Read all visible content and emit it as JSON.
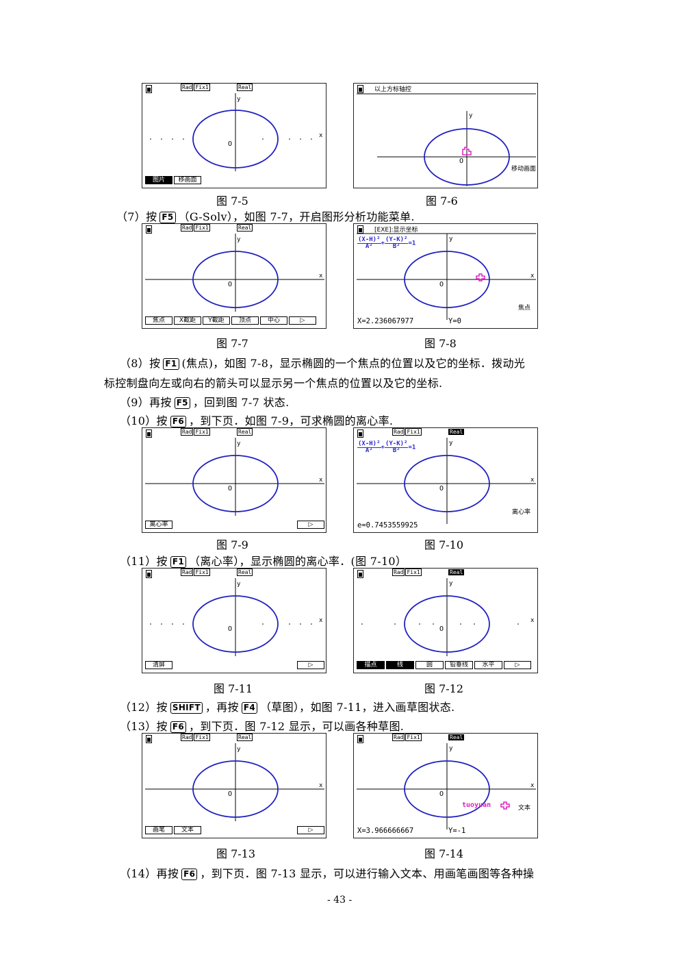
{
  "status": {
    "rad": "Rad",
    "fix": "Fix1",
    "real": "Real"
  },
  "axis_labels": {
    "y": "y",
    "x": "x",
    "origin": "O"
  },
  "colors": {
    "curve": "#2020c0",
    "cursor": "#e020c0",
    "text_marker": "#e020c0"
  },
  "fig5": {
    "caption": "图 7-5",
    "fkeys": [
      "图片",
      "移画面"
    ]
  },
  "fig6": {
    "caption": "图 7-6",
    "header": "以上方标轴控",
    "side_label": "移动画面"
  },
  "fig7": {
    "caption": "图 7-7",
    "fkeys": [
      "焦点",
      "X截距",
      "Y截距",
      "顶点",
      "中心"
    ]
  },
  "fig8": {
    "caption": "图 7-8",
    "header": "[EXE]:显示坐标",
    "eqn": {
      "n1": "(X-H)²",
      "d1": "A²",
      "n2": "(Y-K)²",
      "d2": "B²",
      "rhs": "=1"
    },
    "readout_x": "X=2.236067977",
    "readout_y": "Y=0",
    "side_label": "焦点"
  },
  "fig9": {
    "caption": "图 7-9",
    "fkeys": [
      "离心率"
    ]
  },
  "fig10": {
    "caption": "图 7-10",
    "readout": "e=0.7453559925",
    "side_label": "离心率"
  },
  "fig11": {
    "caption": "图 7-11",
    "fkeys": [
      "清屏"
    ]
  },
  "fig12": {
    "caption": "图 7-12",
    "fkeys": [
      "描点",
      "线",
      "圆",
      "铅垂线",
      "水平"
    ]
  },
  "fig13": {
    "caption": "图 7-13",
    "fkeys": [
      "画笔",
      "文本"
    ]
  },
  "fig14": {
    "caption": "图 7-14",
    "marker_text": "tuoyuan",
    "readout_x": "X=3.966666667",
    "readout_y": "Y=-1",
    "side_label": "文本"
  },
  "p7": {
    "pre": "（7）按",
    "key": "F5",
    "post": "（G-Solv），如图 7-7，开启图形分析功能菜单."
  },
  "p8a": {
    "pre": "（8）按",
    "key": "F1",
    "post": "(焦点)，如图 7-8，显示椭圆的一个焦点的位置以及它的坐标．拨动光"
  },
  "p8b": "标控制盘向左或向右的箭头可以显示另一个焦点的位置以及它的坐标.",
  "p9": {
    "pre": "（9）再按",
    "key": "F5",
    "post": "，回到图 7-7 状态."
  },
  "p10": {
    "pre": "（10）按",
    "key": "F6",
    "post": "，到下页．如图 7-9，可求椭圆的离心率."
  },
  "p11": {
    "pre": "（11）按",
    "key": "F1",
    "post": "（离心率），显示椭圆的离心率．(图 7-10）"
  },
  "p12": {
    "pre": "（12）按",
    "key": "SHIFT",
    "mid": "，再按",
    "key2": "F4",
    "post": "（草图），如图 7-11，进入画草图状态."
  },
  "p13": {
    "pre": "（13）按",
    "key": "F6",
    "post": "，到下页．图 7-12 显示，可以画各种草图."
  },
  "p14": {
    "pre": "（14）再按",
    "key": "F6",
    "post": "，到下页．图 7-13 显示，可以进行输入文本、用画笔画图等各种操"
  },
  "page_number": "- 43 -"
}
